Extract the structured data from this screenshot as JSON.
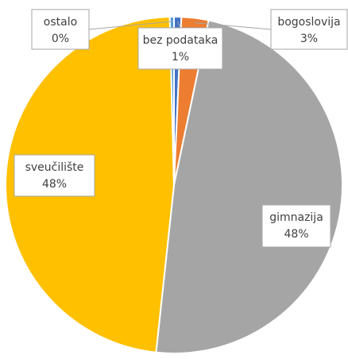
{
  "chart_data": {
    "type": "pie",
    "title": "",
    "slices": [
      {
        "label": "bez podataka",
        "percent_label": "1%",
        "value": 0.7,
        "color": "#4472c4"
      },
      {
        "label": "bogoslovija",
        "percent_label": "3%",
        "value": 2.6,
        "color": "#ed7d31"
      },
      {
        "label": "gimnazija",
        "percent_label": "48%",
        "value": 48.4,
        "color": "#a5a5a5"
      },
      {
        "label": "sveučilište",
        "percent_label": "48%",
        "value": 47.9,
        "color": "#ffc000"
      },
      {
        "label": "ostalo",
        "percent_label": "0%",
        "value": 0.4,
        "color": "#5b9bd5"
      }
    ],
    "legend": "none",
    "data_labels": "callouts with category name and percentage"
  }
}
